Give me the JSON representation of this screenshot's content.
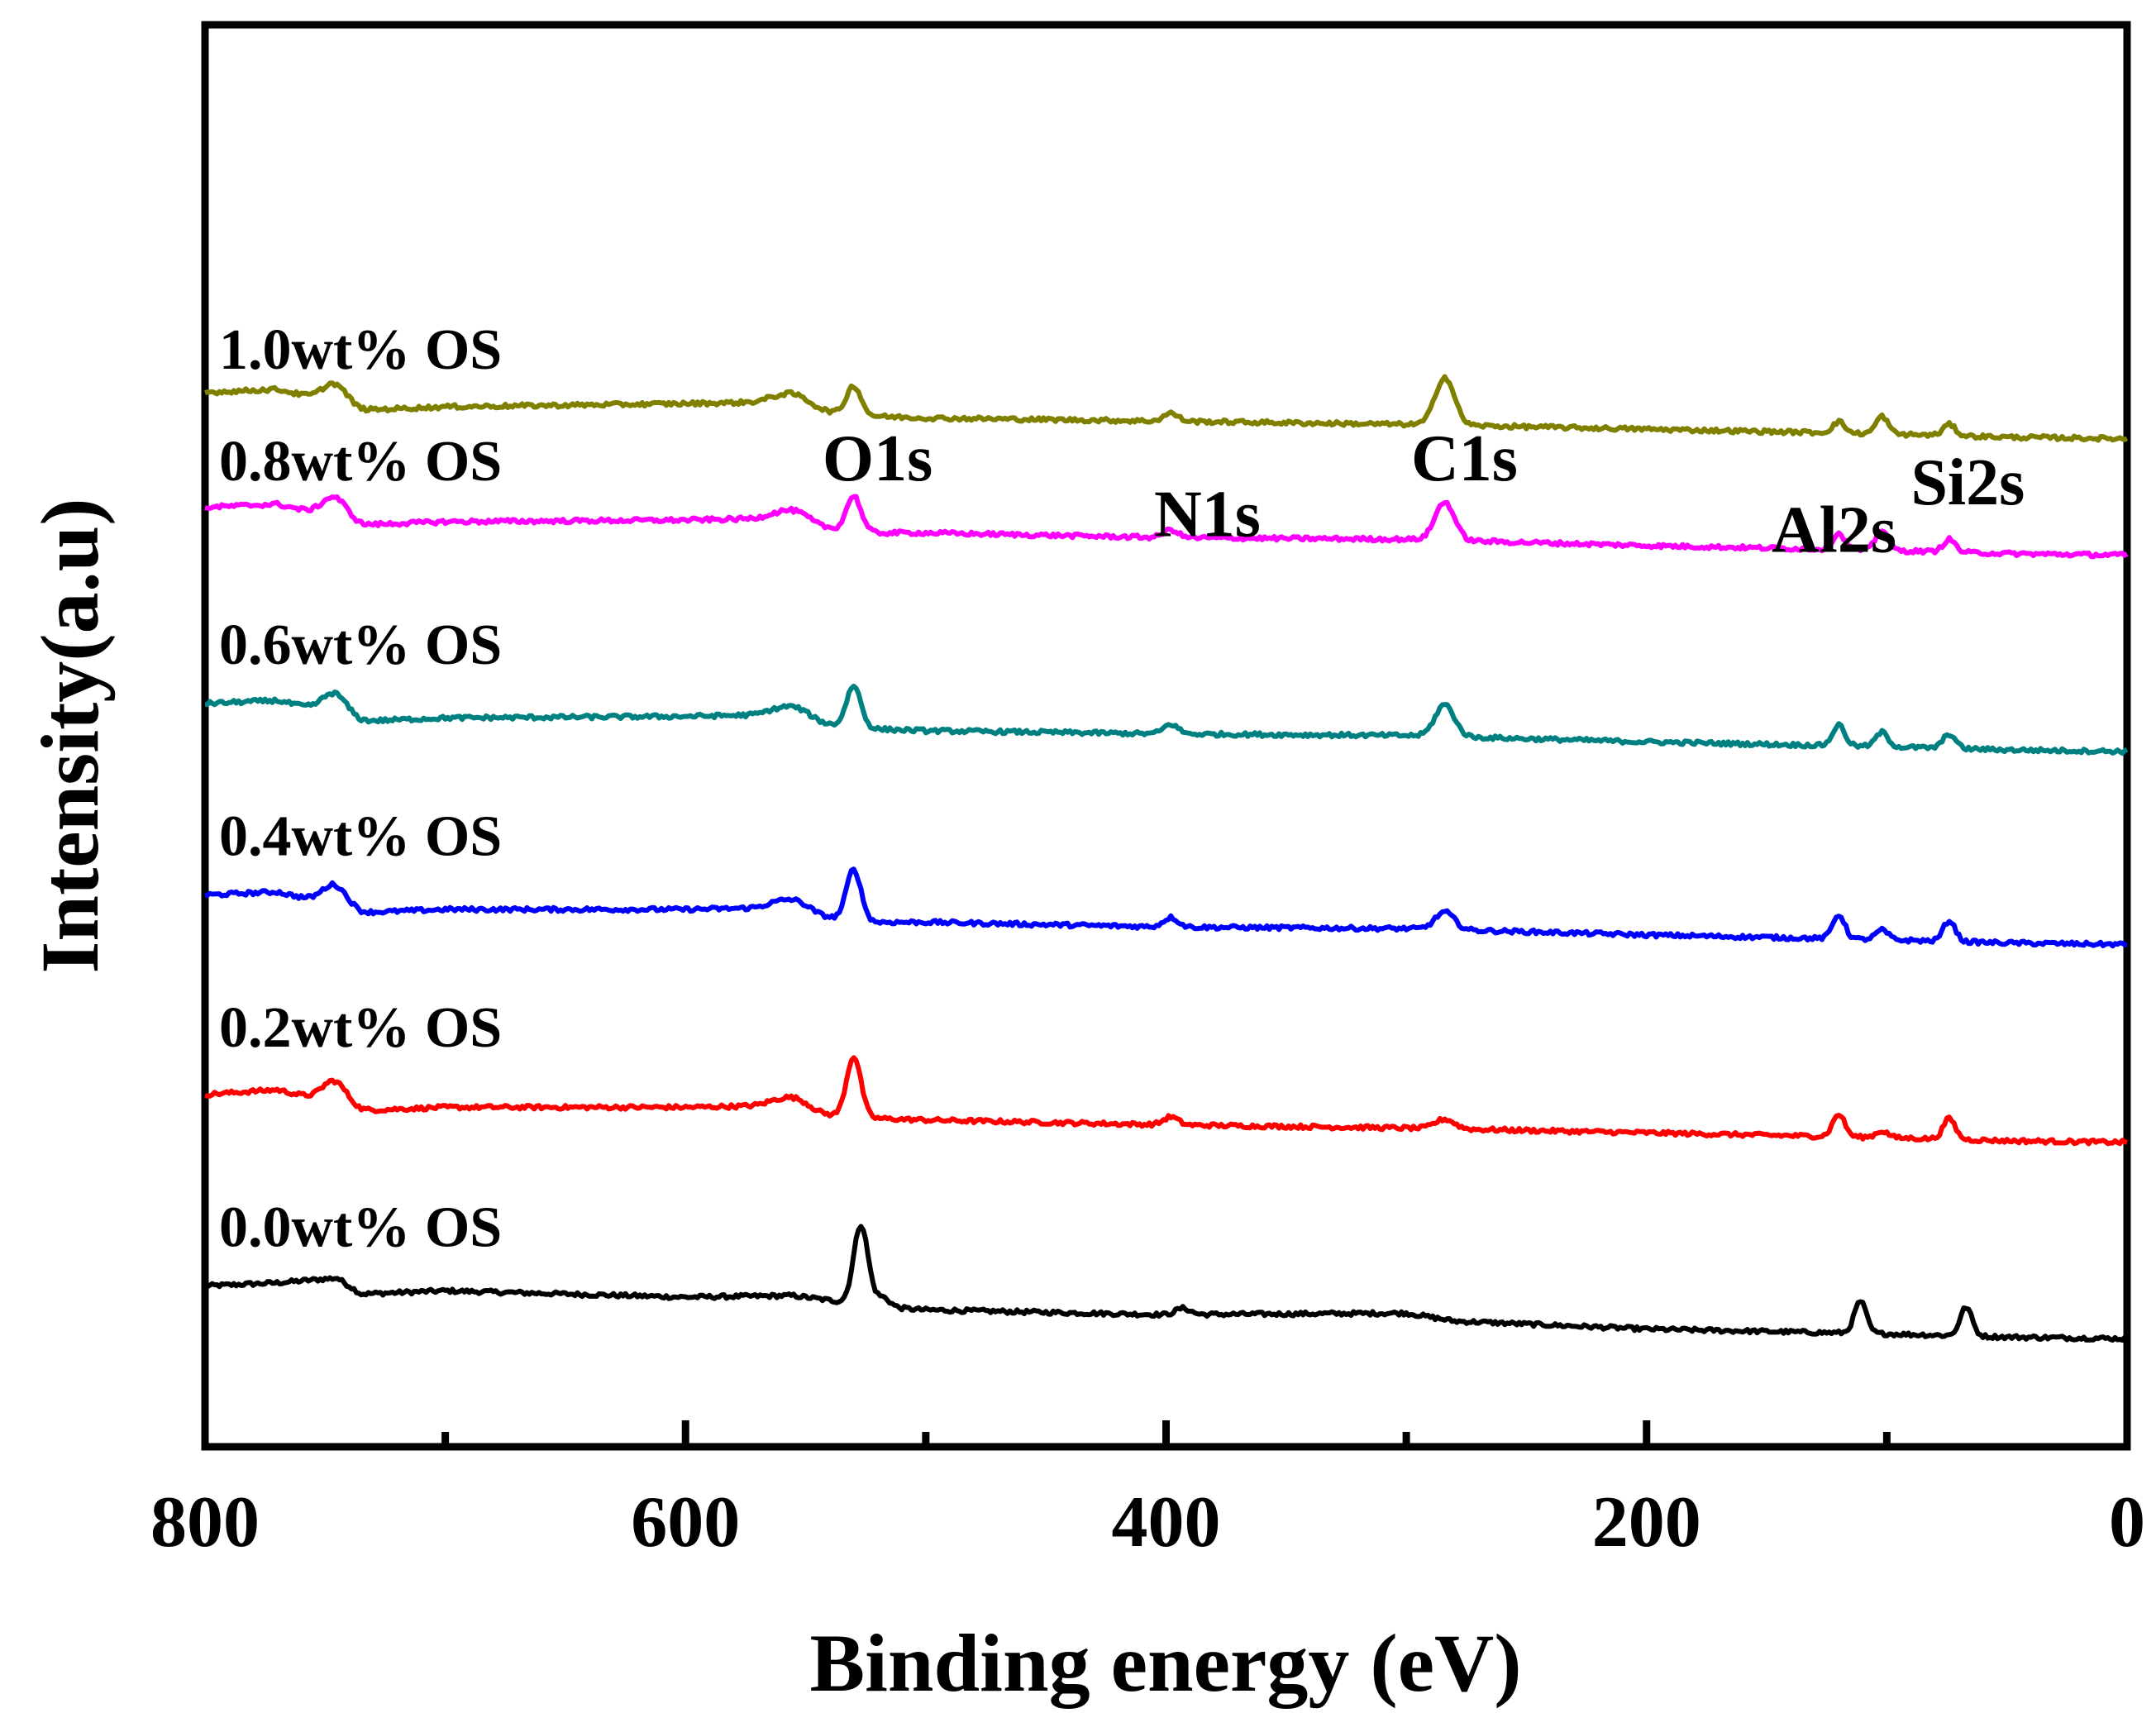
{
  "chart_data": {
    "type": "line",
    "title": "",
    "xlabel": "Binding energy (eV)",
    "ylabel": "Intensity(a.u)",
    "xlim": [
      800,
      0
    ],
    "ylim": [
      0,
      7
    ],
    "x_ticks": [
      {
        "value": 800,
        "label": "800"
      },
      {
        "value": 600,
        "label": "600"
      },
      {
        "value": 400,
        "label": "400"
      },
      {
        "value": 200,
        "label": "200"
      },
      {
        "value": 0,
        "label": "0"
      }
    ],
    "x_minor_ticks": [
      700,
      500,
      300,
      100
    ],
    "grid": false,
    "peak_centers": [
      {
        "name": "O1s",
        "label": "O1s",
        "energy": 531
      },
      {
        "name": "N1s",
        "label": "N1s",
        "energy": 399
      },
      {
        "name": "C1s",
        "label": "C1s",
        "energy": 284
      },
      {
        "name": "Al2s",
        "label": "Al2s",
        "energy": 118
      },
      {
        "name": "Si2s",
        "label": "Si2s",
        "energy": 102
      }
    ],
    "peak_label_anchors": [
      {
        "label": "O1s",
        "energy": 543,
        "level": 6.55
      },
      {
        "label": "N1s",
        "energy": 405,
        "level": 6.2
      },
      {
        "label": "C1s",
        "energy": 298,
        "level": 6.55
      },
      {
        "label": "Al2s",
        "energy": 148,
        "level": 6.1
      },
      {
        "label": "Si2s",
        "energy": 90,
        "level": 6.4
      }
    ],
    "series": [
      {
        "name": "0.0wt% OS",
        "label": "0.0wt% OS",
        "color": "#000000",
        "label_level": 1.75,
        "points": [
          [
            800,
            1.5
          ],
          [
            770,
            1.52
          ],
          [
            745,
            1.55
          ],
          [
            735,
            1.45
          ],
          [
            700,
            1.47
          ],
          [
            600,
            1.43
          ],
          [
            555,
            1.44
          ],
          [
            540,
            1.41
          ],
          [
            520,
            1.37
          ],
          [
            500,
            1.35
          ],
          [
            400,
            1.32
          ],
          [
            300,
            1.33
          ],
          [
            280,
            1.28
          ],
          [
            200,
            1.23
          ],
          [
            100,
            1.2
          ],
          [
            50,
            1.18
          ],
          [
            0,
            1.17
          ]
        ],
        "peaks": [
          {
            "x": 527,
            "h": 0.5,
            "w": 3
          },
          {
            "x": 518,
            "h": 0.06,
            "w": 3
          },
          {
            "x": 393,
            "h": 0.04,
            "w": 3
          },
          {
            "x": 111,
            "h": 0.2,
            "w": 2.5
          },
          {
            "x": 67,
            "h": 0.18,
            "w": 2.5
          }
        ]
      },
      {
        "name": "0.2wt% OS",
        "label": "0.2wt% OS",
        "color": "#ff0000",
        "label_level": 3.0,
        "points": [
          [
            800,
            2.7
          ],
          [
            770,
            2.73
          ],
          [
            750,
            2.66
          ],
          [
            735,
            2.6
          ],
          [
            700,
            2.62
          ],
          [
            600,
            2.62
          ],
          [
            565,
            2.63
          ],
          [
            545,
            2.57
          ],
          [
            520,
            2.55
          ],
          [
            500,
            2.54
          ],
          [
            400,
            2.51
          ],
          [
            300,
            2.49
          ],
          [
            200,
            2.46
          ],
          [
            100,
            2.43
          ],
          [
            50,
            2.41
          ],
          [
            0,
            2.4
          ]
        ],
        "peaks": [
          {
            "x": 746,
            "h": 0.14,
            "w": 5
          },
          {
            "x": 555,
            "h": 0.08,
            "w": 7
          },
          {
            "x": 530,
            "h": 0.38,
            "w": 3
          },
          {
            "x": 398,
            "h": 0.05,
            "w": 3
          },
          {
            "x": 284,
            "h": 0.06,
            "w": 4
          },
          {
            "x": 120,
            "h": 0.14,
            "w": 2.5
          },
          {
            "x": 102,
            "h": 0.04,
            "w": 2.5
          },
          {
            "x": 74,
            "h": 0.13,
            "w": 2.5
          }
        ]
      },
      {
        "name": "0.4wt% OS",
        "label": "0.4wt% OS",
        "color": "#0000ff",
        "label_level": 4.2,
        "points": [
          [
            800,
            3.95
          ],
          [
            770,
            3.97
          ],
          [
            750,
            3.9
          ],
          [
            735,
            3.84
          ],
          [
            700,
            3.86
          ],
          [
            600,
            3.86
          ],
          [
            565,
            3.87
          ],
          [
            545,
            3.81
          ],
          [
            520,
            3.78
          ],
          [
            500,
            3.78
          ],
          [
            400,
            3.75
          ],
          [
            300,
            3.74
          ],
          [
            200,
            3.7
          ],
          [
            100,
            3.67
          ],
          [
            50,
            3.65
          ],
          [
            0,
            3.64
          ]
        ],
        "peaks": [
          {
            "x": 746,
            "h": 0.13,
            "w": 5
          },
          {
            "x": 555,
            "h": 0.08,
            "w": 7
          },
          {
            "x": 530,
            "h": 0.32,
            "w": 3
          },
          {
            "x": 398,
            "h": 0.06,
            "w": 3
          },
          {
            "x": 284,
            "h": 0.11,
            "w": 4
          },
          {
            "x": 120,
            "h": 0.15,
            "w": 2.5
          },
          {
            "x": 102,
            "h": 0.06,
            "w": 2.5
          },
          {
            "x": 74,
            "h": 0.13,
            "w": 2.5
          }
        ]
      },
      {
        "name": "0.6wt% OS",
        "label": "0.6wt% OS",
        "color": "#008080",
        "label_level": 5.4,
        "points": [
          [
            800,
            5.15
          ],
          [
            770,
            5.17
          ],
          [
            750,
            5.1
          ],
          [
            735,
            5.04
          ],
          [
            700,
            5.06
          ],
          [
            600,
            5.07
          ],
          [
            565,
            5.08
          ],
          [
            545,
            5.02
          ],
          [
            520,
            4.99
          ],
          [
            500,
            4.98
          ],
          [
            400,
            4.96
          ],
          [
            300,
            4.95
          ],
          [
            200,
            4.91
          ],
          [
            100,
            4.88
          ],
          [
            50,
            4.86
          ],
          [
            0,
            4.85
          ]
        ],
        "peaks": [
          {
            "x": 746,
            "h": 0.13,
            "w": 5
          },
          {
            "x": 555,
            "h": 0.08,
            "w": 7
          },
          {
            "x": 530,
            "h": 0.26,
            "w": 3
          },
          {
            "x": 398,
            "h": 0.06,
            "w": 3
          },
          {
            "x": 284,
            "h": 0.2,
            "w": 4
          },
          {
            "x": 120,
            "h": 0.13,
            "w": 2.5
          },
          {
            "x": 102,
            "h": 0.09,
            "w": 2.5
          },
          {
            "x": 74,
            "h": 0.09,
            "w": 2.5
          }
        ]
      },
      {
        "name": "0.8wt% OS",
        "label": "0.8wt% OS",
        "color": "#ff00ff",
        "label_level": 6.55,
        "points": [
          [
            800,
            6.38
          ],
          [
            770,
            6.4
          ],
          [
            750,
            6.33
          ],
          [
            735,
            6.27
          ],
          [
            700,
            6.29
          ],
          [
            600,
            6.3
          ],
          [
            565,
            6.31
          ],
          [
            545,
            6.25
          ],
          [
            520,
            6.22
          ],
          [
            500,
            6.22
          ],
          [
            400,
            6.19
          ],
          [
            300,
            6.18
          ],
          [
            200,
            6.14
          ],
          [
            100,
            6.11
          ],
          [
            50,
            6.09
          ],
          [
            0,
            6.08
          ]
        ],
        "peaks": [
          {
            "x": 746,
            "h": 0.13,
            "w": 5
          },
          {
            "x": 555,
            "h": 0.08,
            "w": 7
          },
          {
            "x": 530,
            "h": 0.22,
            "w": 3
          },
          {
            "x": 398,
            "h": 0.05,
            "w": 3
          },
          {
            "x": 284,
            "h": 0.24,
            "w": 4
          },
          {
            "x": 120,
            "h": 0.1,
            "w": 2.5
          },
          {
            "x": 102,
            "h": 0.13,
            "w": 2.5
          },
          {
            "x": 74,
            "h": 0.08,
            "w": 2.5
          }
        ]
      },
      {
        "name": "1.0wt% OS",
        "label": "1.0wt% OS",
        "color": "#808000",
        "label_level": 7.25,
        "points": [
          [
            800,
            7.1
          ],
          [
            770,
            7.12
          ],
          [
            750,
            7.05
          ],
          [
            735,
            6.99
          ],
          [
            700,
            7.01
          ],
          [
            600,
            7.03
          ],
          [
            565,
            7.04
          ],
          [
            545,
            6.98
          ],
          [
            520,
            6.95
          ],
          [
            500,
            6.94
          ],
          [
            400,
            6.92
          ],
          [
            300,
            6.9
          ],
          [
            200,
            6.87
          ],
          [
            100,
            6.84
          ],
          [
            50,
            6.82
          ],
          [
            0,
            6.81
          ]
        ],
        "peaks": [
          {
            "x": 746,
            "h": 0.12,
            "w": 5
          },
          {
            "x": 555,
            "h": 0.08,
            "w": 7
          },
          {
            "x": 530,
            "h": 0.18,
            "w": 3
          },
          {
            "x": 398,
            "h": 0.05,
            "w": 3
          },
          {
            "x": 284,
            "h": 0.3,
            "w": 4
          },
          {
            "x": 120,
            "h": 0.07,
            "w": 2.5
          },
          {
            "x": 102,
            "h": 0.11,
            "w": 2.5
          },
          {
            "x": 74,
            "h": 0.07,
            "w": 2.5
          }
        ]
      }
    ]
  }
}
